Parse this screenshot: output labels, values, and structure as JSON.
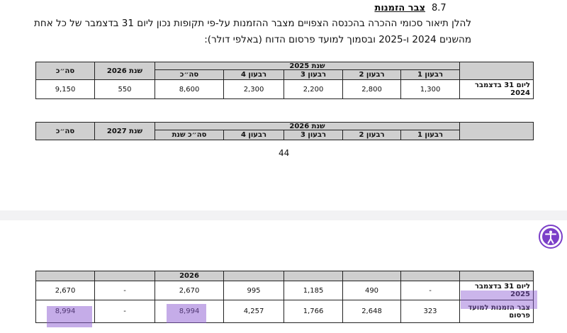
{
  "section": {
    "number": "8.7",
    "title": "צבר הזמנות"
  },
  "paragraph": [
    "להלן תיאור סכומי ההכרה בהכנסה הצפויים מצבר ההזמנות על-פי תקופות נכון ליום 31 בדצמבר של כל אחת",
    "מהשנים 2024 ו-2025 ובסמוך למועד פרסום הדוח (באלפי דולר):"
  ],
  "tables": [
    {
      "group_header": "שנת 2025",
      "headers": [
        "רבעון 1",
        "רבעון 2",
        "רבעון 3",
        "רבעון 4",
        "סה״כ",
        "שנת 2026",
        "סה״כ"
      ],
      "rows": [
        [
          "ליום 31 בדצמבר 2024",
          "1,300",
          "2,800",
          "2,200",
          "2,300",
          "8,600",
          "550",
          "9,150"
        ]
      ]
    },
    {
      "group_header": "שנת 2026",
      "headers": [
        "רבעון 1",
        "רבעון 2",
        "רבעון 3",
        "רבעון 4",
        "סה״כ שנת",
        "שנת 2027",
        "סה״כ"
      ],
      "rows": []
    }
  ],
  "page_number": "44",
  "table_continued": {
    "group_header": "2026",
    "rows": [
      [
        "ליום 31 בדצמבר 2025",
        "-",
        "490",
        "1,185",
        "995",
        "2,670",
        "-",
        "2,670"
      ],
      [
        "צבר הזמנות למועד פרסום",
        "323",
        "2,648",
        "1,766",
        "4,257",
        "8,994",
        "-",
        "8,994"
      ]
    ]
  }
}
